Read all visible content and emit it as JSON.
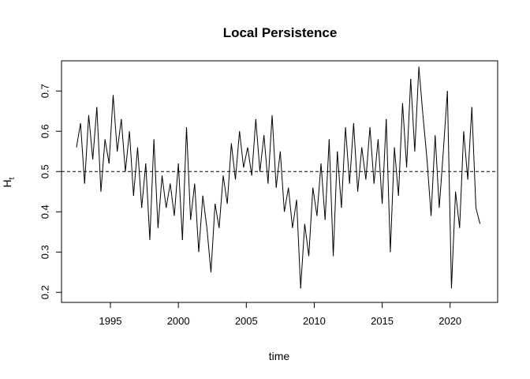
{
  "chart_data": {
    "type": "line",
    "title": "Local Persistence",
    "xlabel": "time",
    "ylabel": "H",
    "ylabel_subscript": "t",
    "xlim": [
      1991.4,
      2023.5
    ],
    "ylim": [
      0.175,
      0.775
    ],
    "x_ticks": [
      1995,
      2000,
      2005,
      2010,
      2015,
      2020
    ],
    "x_tick_labels": [
      "1995",
      "2000",
      "2005",
      "2010",
      "2015",
      "2020"
    ],
    "y_ticks": [
      0.2,
      0.3,
      0.4,
      0.5,
      0.6,
      0.7
    ],
    "y_tick_labels": [
      "0.2",
      "0.3",
      "0.4",
      "0.5",
      "0.6",
      "0.7"
    ],
    "reference_line": {
      "y": 0.5,
      "style": "dashed"
    },
    "grid": false,
    "line_color": "#000000",
    "series": [
      {
        "x": [
          1992.5,
          1992.8,
          1993.1,
          1993.4,
          1993.7,
          1994.0,
          1994.3,
          1994.6,
          1994.9,
          1995.2,
          1995.5,
          1995.8,
          1996.1,
          1996.4,
          1996.7,
          1997.0,
          1997.3,
          1997.6,
          1997.9,
          1998.2,
          1998.5,
          1998.8,
          1999.1,
          1999.4,
          1999.7,
          2000.0,
          2000.3,
          2000.6,
          2000.9,
          2001.2,
          2001.5,
          2001.8,
          2002.1,
          2002.4,
          2002.7,
          2003.0,
          2003.3,
          2003.6,
          2003.9,
          2004.2,
          2004.5,
          2004.8,
          2005.1,
          2005.4,
          2005.7,
          2006.0,
          2006.3,
          2006.6,
          2006.9,
          2007.2,
          2007.5,
          2007.8,
          2008.1,
          2008.4,
          2008.7,
          2009.0,
          2009.3,
          2009.6,
          2009.9,
          2010.2,
          2010.5,
          2010.8,
          2011.1,
          2011.4,
          2011.7,
          2012.0,
          2012.3,
          2012.6,
          2012.9,
          2013.2,
          2013.5,
          2013.8,
          2014.1,
          2014.4,
          2014.7,
          2015.0,
          2015.3,
          2015.6,
          2015.9,
          2016.2,
          2016.5,
          2016.8,
          2017.1,
          2017.4,
          2017.7,
          2018.0,
          2018.3,
          2018.6,
          2018.9,
          2019.2,
          2019.5,
          2019.8,
          2020.1,
          2020.4,
          2020.7,
          2021.0,
          2021.3,
          2021.6,
          2021.9,
          2022.2
        ],
        "values": [
          0.56,
          0.62,
          0.47,
          0.64,
          0.53,
          0.66,
          0.45,
          0.58,
          0.52,
          0.69,
          0.55,
          0.63,
          0.5,
          0.6,
          0.44,
          0.56,
          0.41,
          0.52,
          0.33,
          0.58,
          0.36,
          0.49,
          0.41,
          0.47,
          0.39,
          0.52,
          0.33,
          0.61,
          0.38,
          0.47,
          0.3,
          0.44,
          0.36,
          0.25,
          0.42,
          0.36,
          0.49,
          0.42,
          0.57,
          0.48,
          0.6,
          0.51,
          0.56,
          0.49,
          0.63,
          0.5,
          0.59,
          0.47,
          0.64,
          0.46,
          0.55,
          0.4,
          0.46,
          0.36,
          0.43,
          0.21,
          0.37,
          0.29,
          0.46,
          0.39,
          0.52,
          0.38,
          0.58,
          0.29,
          0.55,
          0.41,
          0.61,
          0.47,
          0.62,
          0.45,
          0.56,
          0.48,
          0.61,
          0.47,
          0.58,
          0.42,
          0.63,
          0.3,
          0.56,
          0.44,
          0.67,
          0.51,
          0.73,
          0.55,
          0.76,
          0.64,
          0.53,
          0.39,
          0.59,
          0.41,
          0.55,
          0.7,
          0.21,
          0.45,
          0.36,
          0.6,
          0.48,
          0.66,
          0.41,
          0.37
        ]
      }
    ]
  }
}
